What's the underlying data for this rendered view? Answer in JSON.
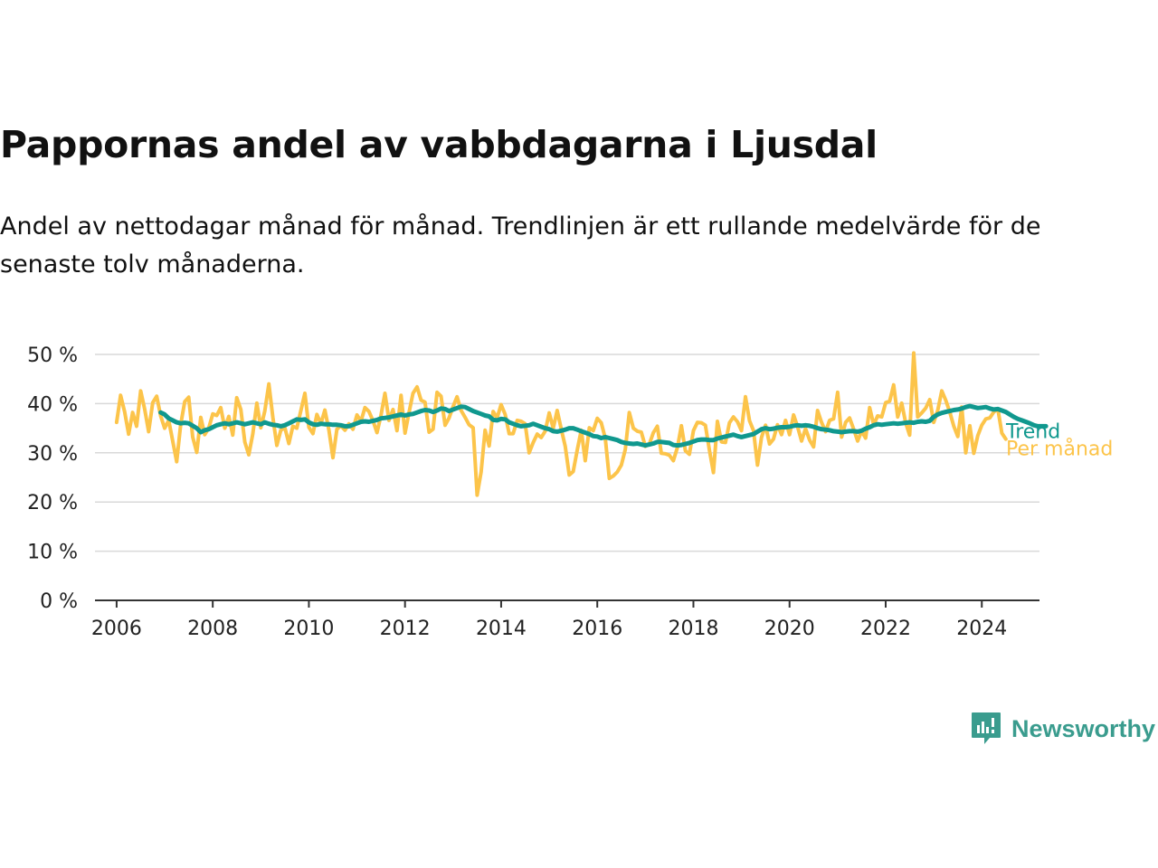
{
  "title": "Pappornas andel av vabbdagarna i Ljusdal",
  "subtitle": "Andel av nettodagar månad för månad. Trendlinjen är ett rullande medelvärde för de senaste tolv månaderna.",
  "brand": {
    "name": "Newsworthy",
    "color": "#3a9c8e"
  },
  "chart_data": {
    "type": "line",
    "ylim": [
      0,
      50
    ],
    "yticks": [
      0,
      10,
      20,
      30,
      40,
      50
    ],
    "ytick_labels": [
      "0 %",
      "10 %",
      "20 %",
      "30 %",
      "40 %",
      "50 %"
    ],
    "xlim": [
      2005.55,
      2025.2
    ],
    "xticks": [
      2006,
      2008,
      2010,
      2012,
      2014,
      2016,
      2018,
      2020,
      2022,
      2024
    ],
    "xtick_labels": [
      "2006",
      "2008",
      "2010",
      "2012",
      "2014",
      "2016",
      "2018",
      "2020",
      "2022",
      "2024"
    ],
    "grid": true,
    "series": [
      {
        "name": "Per månad",
        "color": "#fcc44a",
        "x_start": 2006.0,
        "x_step": 0.0833333,
        "values": [
          36.2,
          41.7,
          38.3,
          33.8,
          38.2,
          35.4,
          42.6,
          38.9,
          34.3,
          40.2,
          41.5,
          37.5,
          35.0,
          36.6,
          32.4,
          28.2,
          35.7,
          40.4,
          41.3,
          33.2,
          30.1,
          37.2,
          33.7,
          35.0,
          37.9,
          37.6,
          39.2,
          35.0,
          37.4,
          33.6,
          41.2,
          38.8,
          32.2,
          29.6,
          33.8,
          40.1,
          35.1,
          38.5,
          44.0,
          37.2,
          31.5,
          34.6,
          35.1,
          31.9,
          35.4,
          35.0,
          38.6,
          42.1,
          35.2,
          33.9,
          37.8,
          35.9,
          38.7,
          34.6,
          29.0,
          34.8,
          35.5,
          34.6,
          35.9,
          34.8,
          37.7,
          36.4,
          39.2,
          38.4,
          36.5,
          34.1,
          37.6,
          42.1,
          36.6,
          38.8,
          34.5,
          41.7,
          34.0,
          38.2,
          42.1,
          43.4,
          40.7,
          40.3,
          34.2,
          34.8,
          42.3,
          41.5,
          35.6,
          37.1,
          39.4,
          41.4,
          38.6,
          37.2,
          35.7,
          35.1,
          21.4,
          26.1,
          34.6,
          31.4,
          38.4,
          37.1,
          39.8,
          37.8,
          33.9,
          33.9,
          36.6,
          36.4,
          35.9,
          30.0,
          32.1,
          33.8,
          33.1,
          34.4,
          38.1,
          35.0,
          38.6,
          34.8,
          31.3,
          25.5,
          26.2,
          30.6,
          34.6,
          28.4,
          35.1,
          34.5,
          37.0,
          36.1,
          32.9,
          24.8,
          25.3,
          26.1,
          27.5,
          30.7,
          38.2,
          35.0,
          34.4,
          34.2,
          31.3,
          31.8,
          34.1,
          35.4,
          29.9,
          29.8,
          29.5,
          28.4,
          31.1,
          35.5,
          30.4,
          29.7,
          34.5,
          36.2,
          36.1,
          35.6,
          30.5,
          26.0,
          36.4,
          32.2,
          32.1,
          36.1,
          37.3,
          36.3,
          34.5,
          41.4,
          36.5,
          34.5,
          27.5,
          33.1,
          35.6,
          31.8,
          32.8,
          35.7,
          33.7,
          36.6,
          33.7,
          37.7,
          35.3,
          32.4,
          34.9,
          32.6,
          31.2,
          38.6,
          36.2,
          34.3,
          36.6,
          36.9,
          42.3,
          33.2,
          36.2,
          37.1,
          34.8,
          32.4,
          34.4,
          33.0,
          39.2,
          35.7,
          37.5,
          37.3,
          40.2,
          40.5,
          43.8,
          37.3,
          40.1,
          36.1,
          33.6,
          50.3,
          37.3,
          38.1,
          39.1,
          40.8,
          36.2,
          38.6,
          42.6,
          40.7,
          38.3,
          35.4,
          33.3,
          39.3,
          30.0,
          35.5,
          29.9,
          33.5,
          35.6,
          36.9,
          37.1,
          38.3,
          38.9,
          34.0,
          32.8
        ]
      },
      {
        "name": "Trend",
        "color": "#10988e",
        "x_start": 2006.9167,
        "x_step": 0.0833333,
        "values": [
          38.2,
          37.8,
          37.0,
          36.6,
          36.2,
          36.0,
          36.1,
          36.0,
          35.5,
          35.0,
          34.2,
          34.6,
          34.8,
          35.2,
          35.6,
          35.8,
          36.0,
          35.8,
          36.0,
          36.2,
          36.0,
          35.8,
          36.0,
          36.2,
          36.0,
          35.8,
          36.2,
          35.9,
          35.7,
          35.6,
          35.4,
          35.6,
          36.0,
          36.4,
          36.8,
          36.7,
          36.8,
          36.2,
          35.8,
          35.7,
          35.9,
          35.8,
          35.8,
          35.7,
          35.7,
          35.6,
          35.4,
          35.4,
          35.7,
          36.0,
          36.3,
          36.4,
          36.3,
          36.5,
          36.7,
          37.0,
          37.1,
          37.2,
          37.4,
          37.6,
          37.8,
          37.6,
          37.8,
          37.9,
          38.2,
          38.5,
          38.7,
          38.6,
          38.3,
          38.6,
          39.0,
          38.9,
          38.5,
          38.8,
          39.1,
          39.4,
          39.3,
          38.9,
          38.5,
          38.2,
          37.9,
          37.6,
          37.4,
          36.7,
          36.6,
          36.9,
          36.8,
          36.2,
          35.9,
          35.6,
          35.4,
          35.5,
          35.6,
          35.9,
          35.6,
          35.3,
          35.0,
          34.8,
          34.4,
          34.3,
          34.5,
          34.7,
          35.0,
          35.0,
          34.7,
          34.4,
          34.1,
          33.8,
          33.4,
          33.3,
          33.0,
          33.2,
          33.0,
          32.8,
          32.6,
          32.2,
          32.0,
          31.9,
          31.8,
          31.9,
          31.7,
          31.5,
          31.7,
          31.9,
          32.2,
          32.2,
          32.1,
          32.0,
          31.6,
          31.5,
          31.6,
          31.8,
          32.0,
          32.3,
          32.6,
          32.7,
          32.7,
          32.6,
          32.6,
          32.9,
          33.1,
          33.3,
          33.5,
          33.7,
          33.4,
          33.2,
          33.4,
          33.6,
          33.8,
          34.3,
          34.8,
          35.0,
          34.8,
          34.9,
          35.1,
          35.2,
          35.2,
          35.3,
          35.5,
          35.6,
          35.5,
          35.6,
          35.5,
          35.3,
          35.0,
          34.8,
          34.7,
          34.6,
          34.4,
          34.3,
          34.2,
          34.3,
          34.4,
          34.4,
          34.3,
          34.5,
          34.9,
          35.2,
          35.6,
          35.8,
          35.7,
          35.8,
          35.9,
          36.0,
          35.9,
          36.0,
          36.1,
          36.2,
          36.1,
          36.3,
          36.4,
          36.3,
          36.5,
          37.3,
          37.8,
          38.1,
          38.3,
          38.5,
          38.7,
          38.8,
          39.0,
          39.3,
          39.5,
          39.3,
          39.1,
          39.2,
          39.3,
          39.0,
          38.8,
          38.9,
          38.6,
          38.3,
          37.8,
          37.3,
          36.9,
          36.6,
          36.3,
          36.0,
          35.6,
          35.4,
          35.4,
          35.4
        ]
      }
    ]
  }
}
